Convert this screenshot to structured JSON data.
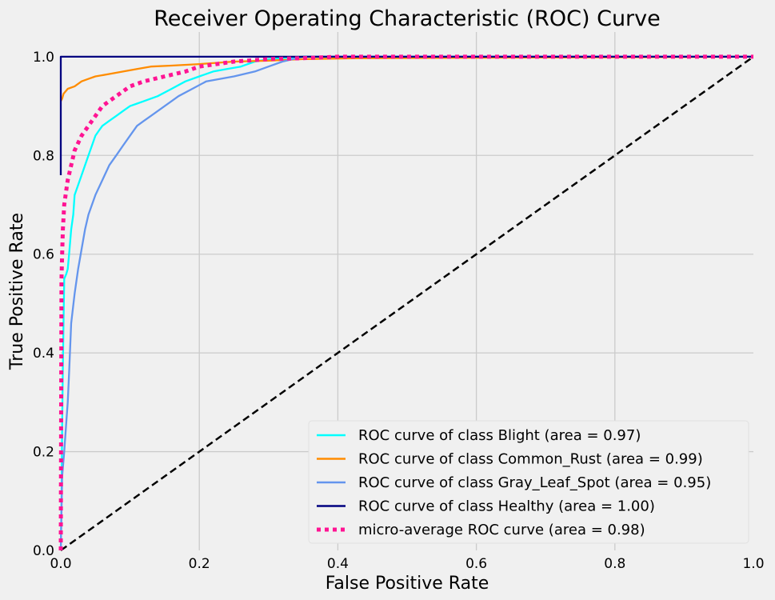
{
  "chart_data": {
    "type": "line",
    "title": "Receiver Operating Characteristic (ROC) Curve",
    "xlabel": "False Positive Rate",
    "ylabel": "True Positive Rate",
    "xlim": [
      0.0,
      1.0
    ],
    "ylim": [
      0.0,
      1.05
    ],
    "xticks": [
      0.0,
      0.2,
      0.4,
      0.6,
      0.8,
      1.0
    ],
    "yticks": [
      0.0,
      0.2,
      0.4,
      0.6,
      0.8,
      1.0
    ],
    "xtick_labels": [
      "0.0",
      "0.2",
      "0.4",
      "0.6",
      "0.8",
      "1.0"
    ],
    "ytick_labels": [
      "0.0",
      "0.2",
      "0.4",
      "0.6",
      "0.8",
      "1.0"
    ],
    "grid": true,
    "legend_position": "lower-right",
    "series": [
      {
        "name": "ROC curve of class Blight (area = 0.97)",
        "color": "#00ffff",
        "style": "solid",
        "x": [
          0,
          0.001,
          0.002,
          0.003,
          0.004,
          0.005,
          0.008,
          0.01,
          0.012,
          0.015,
          0.018,
          0.02,
          0.025,
          0.03,
          0.035,
          0.04,
          0.045,
          0.05,
          0.055,
          0.06,
          0.07,
          0.08,
          0.09,
          0.1,
          0.11,
          0.12,
          0.14,
          0.16,
          0.18,
          0.2,
          0.22,
          0.24,
          0.26,
          0.28,
          0.3,
          0.35,
          0.4,
          1.0
        ],
        "y": [
          0,
          0.1,
          0.25,
          0.37,
          0.47,
          0.55,
          0.56,
          0.57,
          0.6,
          0.65,
          0.68,
          0.72,
          0.74,
          0.76,
          0.78,
          0.8,
          0.82,
          0.84,
          0.85,
          0.86,
          0.87,
          0.88,
          0.89,
          0.9,
          0.905,
          0.91,
          0.92,
          0.935,
          0.95,
          0.96,
          0.97,
          0.975,
          0.98,
          0.99,
          0.995,
          1.0,
          1.0,
          1.0
        ]
      },
      {
        "name": "ROC curve of class Common_Rust (area = 0.99)",
        "color": "#ff8c00",
        "style": "solid",
        "x": [
          0,
          0.002,
          0.004,
          0.007,
          0.01,
          0.02,
          0.03,
          0.04,
          0.05,
          0.07,
          0.09,
          0.11,
          0.13,
          0.16,
          0.2,
          0.25,
          0.3,
          0.35,
          0.43,
          1.0
        ],
        "y": [
          0.91,
          0.915,
          0.925,
          0.93,
          0.935,
          0.94,
          0.95,
          0.955,
          0.96,
          0.965,
          0.97,
          0.975,
          0.98,
          0.982,
          0.985,
          0.99,
          0.992,
          0.995,
          0.997,
          1.0
        ]
      },
      {
        "name": "ROC curve of class Gray_Leaf_Spot (area = 0.95)",
        "color": "#6495ed",
        "style": "solid",
        "x": [
          0,
          0.002,
          0.005,
          0.008,
          0.01,
          0.012,
          0.015,
          0.02,
          0.025,
          0.03,
          0.035,
          0.04,
          0.05,
          0.06,
          0.07,
          0.08,
          0.09,
          0.1,
          0.11,
          0.12,
          0.13,
          0.15,
          0.17,
          0.19,
          0.21,
          0.25,
          0.28,
          0.3,
          0.32,
          0.35,
          1.0
        ],
        "y": [
          0.0,
          0.15,
          0.2,
          0.26,
          0.3,
          0.36,
          0.46,
          0.52,
          0.57,
          0.61,
          0.65,
          0.68,
          0.72,
          0.75,
          0.78,
          0.8,
          0.82,
          0.84,
          0.86,
          0.87,
          0.88,
          0.9,
          0.92,
          0.935,
          0.95,
          0.96,
          0.97,
          0.98,
          0.99,
          1.0,
          1.0
        ]
      },
      {
        "name": "ROC curve of class Healthy (area = 1.00)",
        "color": "#000080",
        "style": "solid",
        "x": [
          0.0,
          0.0,
          1.0
        ],
        "y": [
          0.76,
          1.0,
          1.0
        ]
      },
      {
        "name": "micro-average ROC curve (area = 0.98)",
        "color": "#ff1493",
        "style": "dotted",
        "x": [
          0,
          0.001,
          0.002,
          0.003,
          0.005,
          0.008,
          0.01,
          0.015,
          0.02,
          0.03,
          0.04,
          0.05,
          0.06,
          0.08,
          0.1,
          0.12,
          0.15,
          0.18,
          0.2,
          0.25,
          0.3,
          0.35,
          0.4,
          0.5,
          0.6,
          0.8,
          1.0
        ],
        "y": [
          0.0,
          0.55,
          0.6,
          0.65,
          0.7,
          0.73,
          0.75,
          0.78,
          0.81,
          0.84,
          0.86,
          0.88,
          0.9,
          0.92,
          0.94,
          0.95,
          0.96,
          0.97,
          0.98,
          0.99,
          0.995,
          0.997,
          1.0,
          1.0,
          1.0,
          1.0,
          1.0
        ]
      },
      {
        "name": "",
        "color": "#000000",
        "style": "dashed",
        "x": [
          0,
          1
        ],
        "y": [
          0,
          1
        ]
      }
    ]
  }
}
